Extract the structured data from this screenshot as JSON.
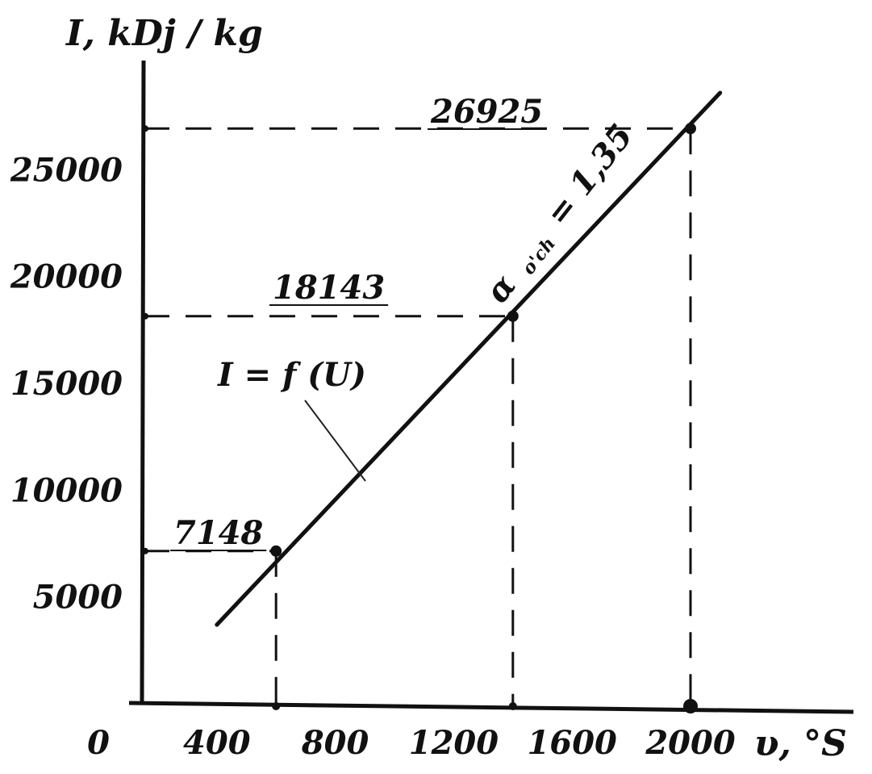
{
  "chart_data": {
    "type": "line",
    "title": "",
    "ylabel": "I, kDj / kg",
    "xlabel": "υ, °S",
    "origin_label": "0",
    "xlim": [
      0,
      2400
    ],
    "ylim": [
      0,
      29500
    ],
    "x_ticks": [
      400,
      800,
      1200,
      1600,
      2000
    ],
    "x_tick_labels": [
      "400",
      "800",
      "1200",
      "1600",
      "2000"
    ],
    "y_ticks": [
      5000,
      10000,
      15000,
      20000,
      25000
    ],
    "y_tick_labels": [
      "5000",
      "10000",
      "15000",
      "20000",
      "25000"
    ],
    "series": [
      {
        "name": "I = f (U)",
        "x": [
          400,
          2100
        ],
        "y": [
          3700,
          28600
        ]
      }
    ],
    "marked_points": [
      {
        "x": 600,
        "y": 7148,
        "label": "7148"
      },
      {
        "x": 1400,
        "y": 18143,
        "label": "18143"
      },
      {
        "x": 2000,
        "y": 26925,
        "label": "26925"
      }
    ],
    "line_annotation": {
      "text": "α o'ch = 1,35",
      "symbol": "α",
      "subscript": "o'ch",
      "value": "= 1,35"
    },
    "grid": false,
    "colors": {
      "line": "#111111",
      "axis": "#111111"
    }
  }
}
